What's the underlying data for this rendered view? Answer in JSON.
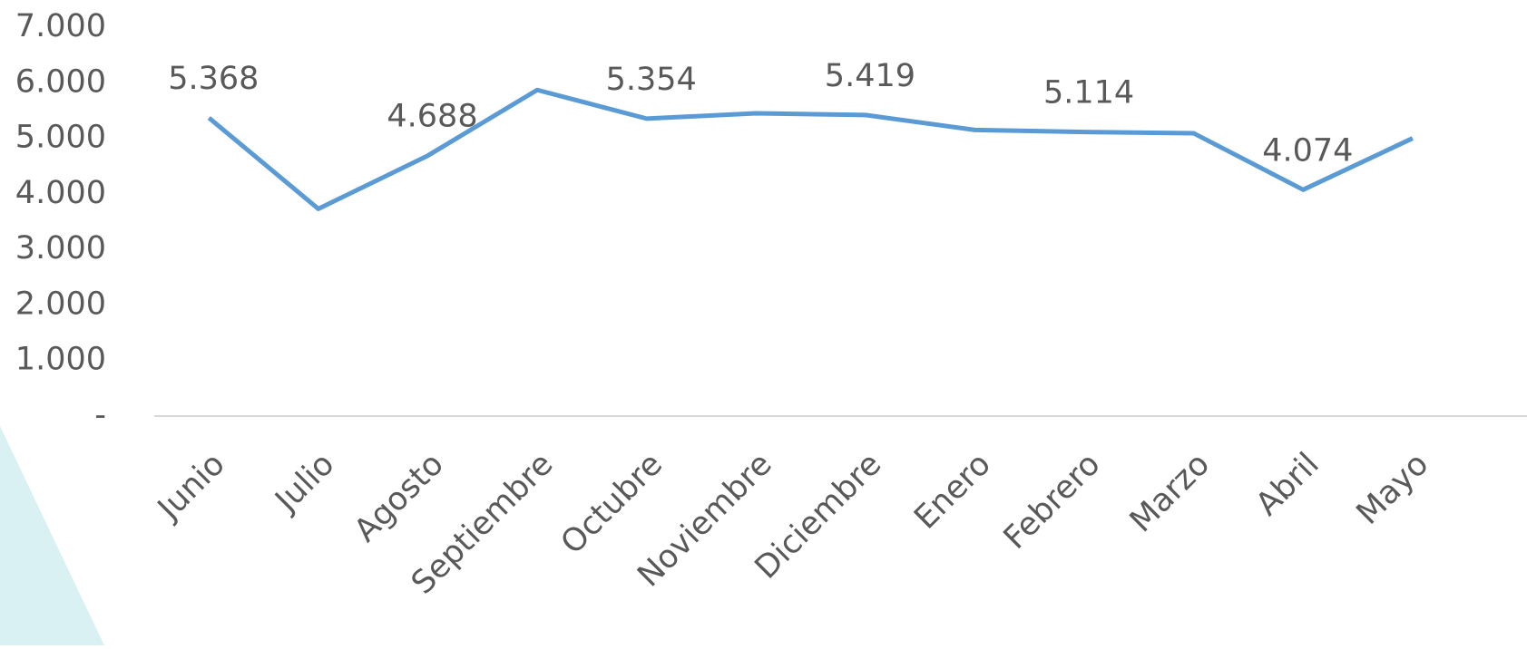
{
  "chart_data": {
    "type": "line",
    "categories": [
      "Junio",
      "Julio",
      "Agosto",
      "Septiembre",
      "Octubre",
      "Noviembre",
      "Diciembre",
      "Enero",
      "Febrero",
      "Marzo",
      "Abril",
      "Mayo"
    ],
    "series": [
      {
        "color": "#5b9bd5",
        "values": [
          5368,
          3730,
          4688,
          5870,
          5354,
          5450,
          5419,
          5150,
          5114,
          5090,
          4074,
          5000
        ],
        "value_labels": [
          "5.368",
          null,
          "4.688",
          null,
          "5.354",
          null,
          "5.419",
          null,
          "5.114",
          null,
          "4.074",
          null
        ]
      }
    ],
    "ylim": [
      0,
      7000
    ],
    "yticks": [
      {
        "value": 0,
        "label": "-"
      },
      {
        "value": 1000,
        "label": "1.000"
      },
      {
        "value": 2000,
        "label": "2.000"
      },
      {
        "value": 3000,
        "label": "3.000"
      },
      {
        "value": 4000,
        "label": "4.000"
      },
      {
        "value": 5000,
        "label": "5.000"
      },
      {
        "value": 6000,
        "label": "6.000"
      },
      {
        "value": 7000,
        "label": "7.000"
      }
    ],
    "grid": false
  }
}
